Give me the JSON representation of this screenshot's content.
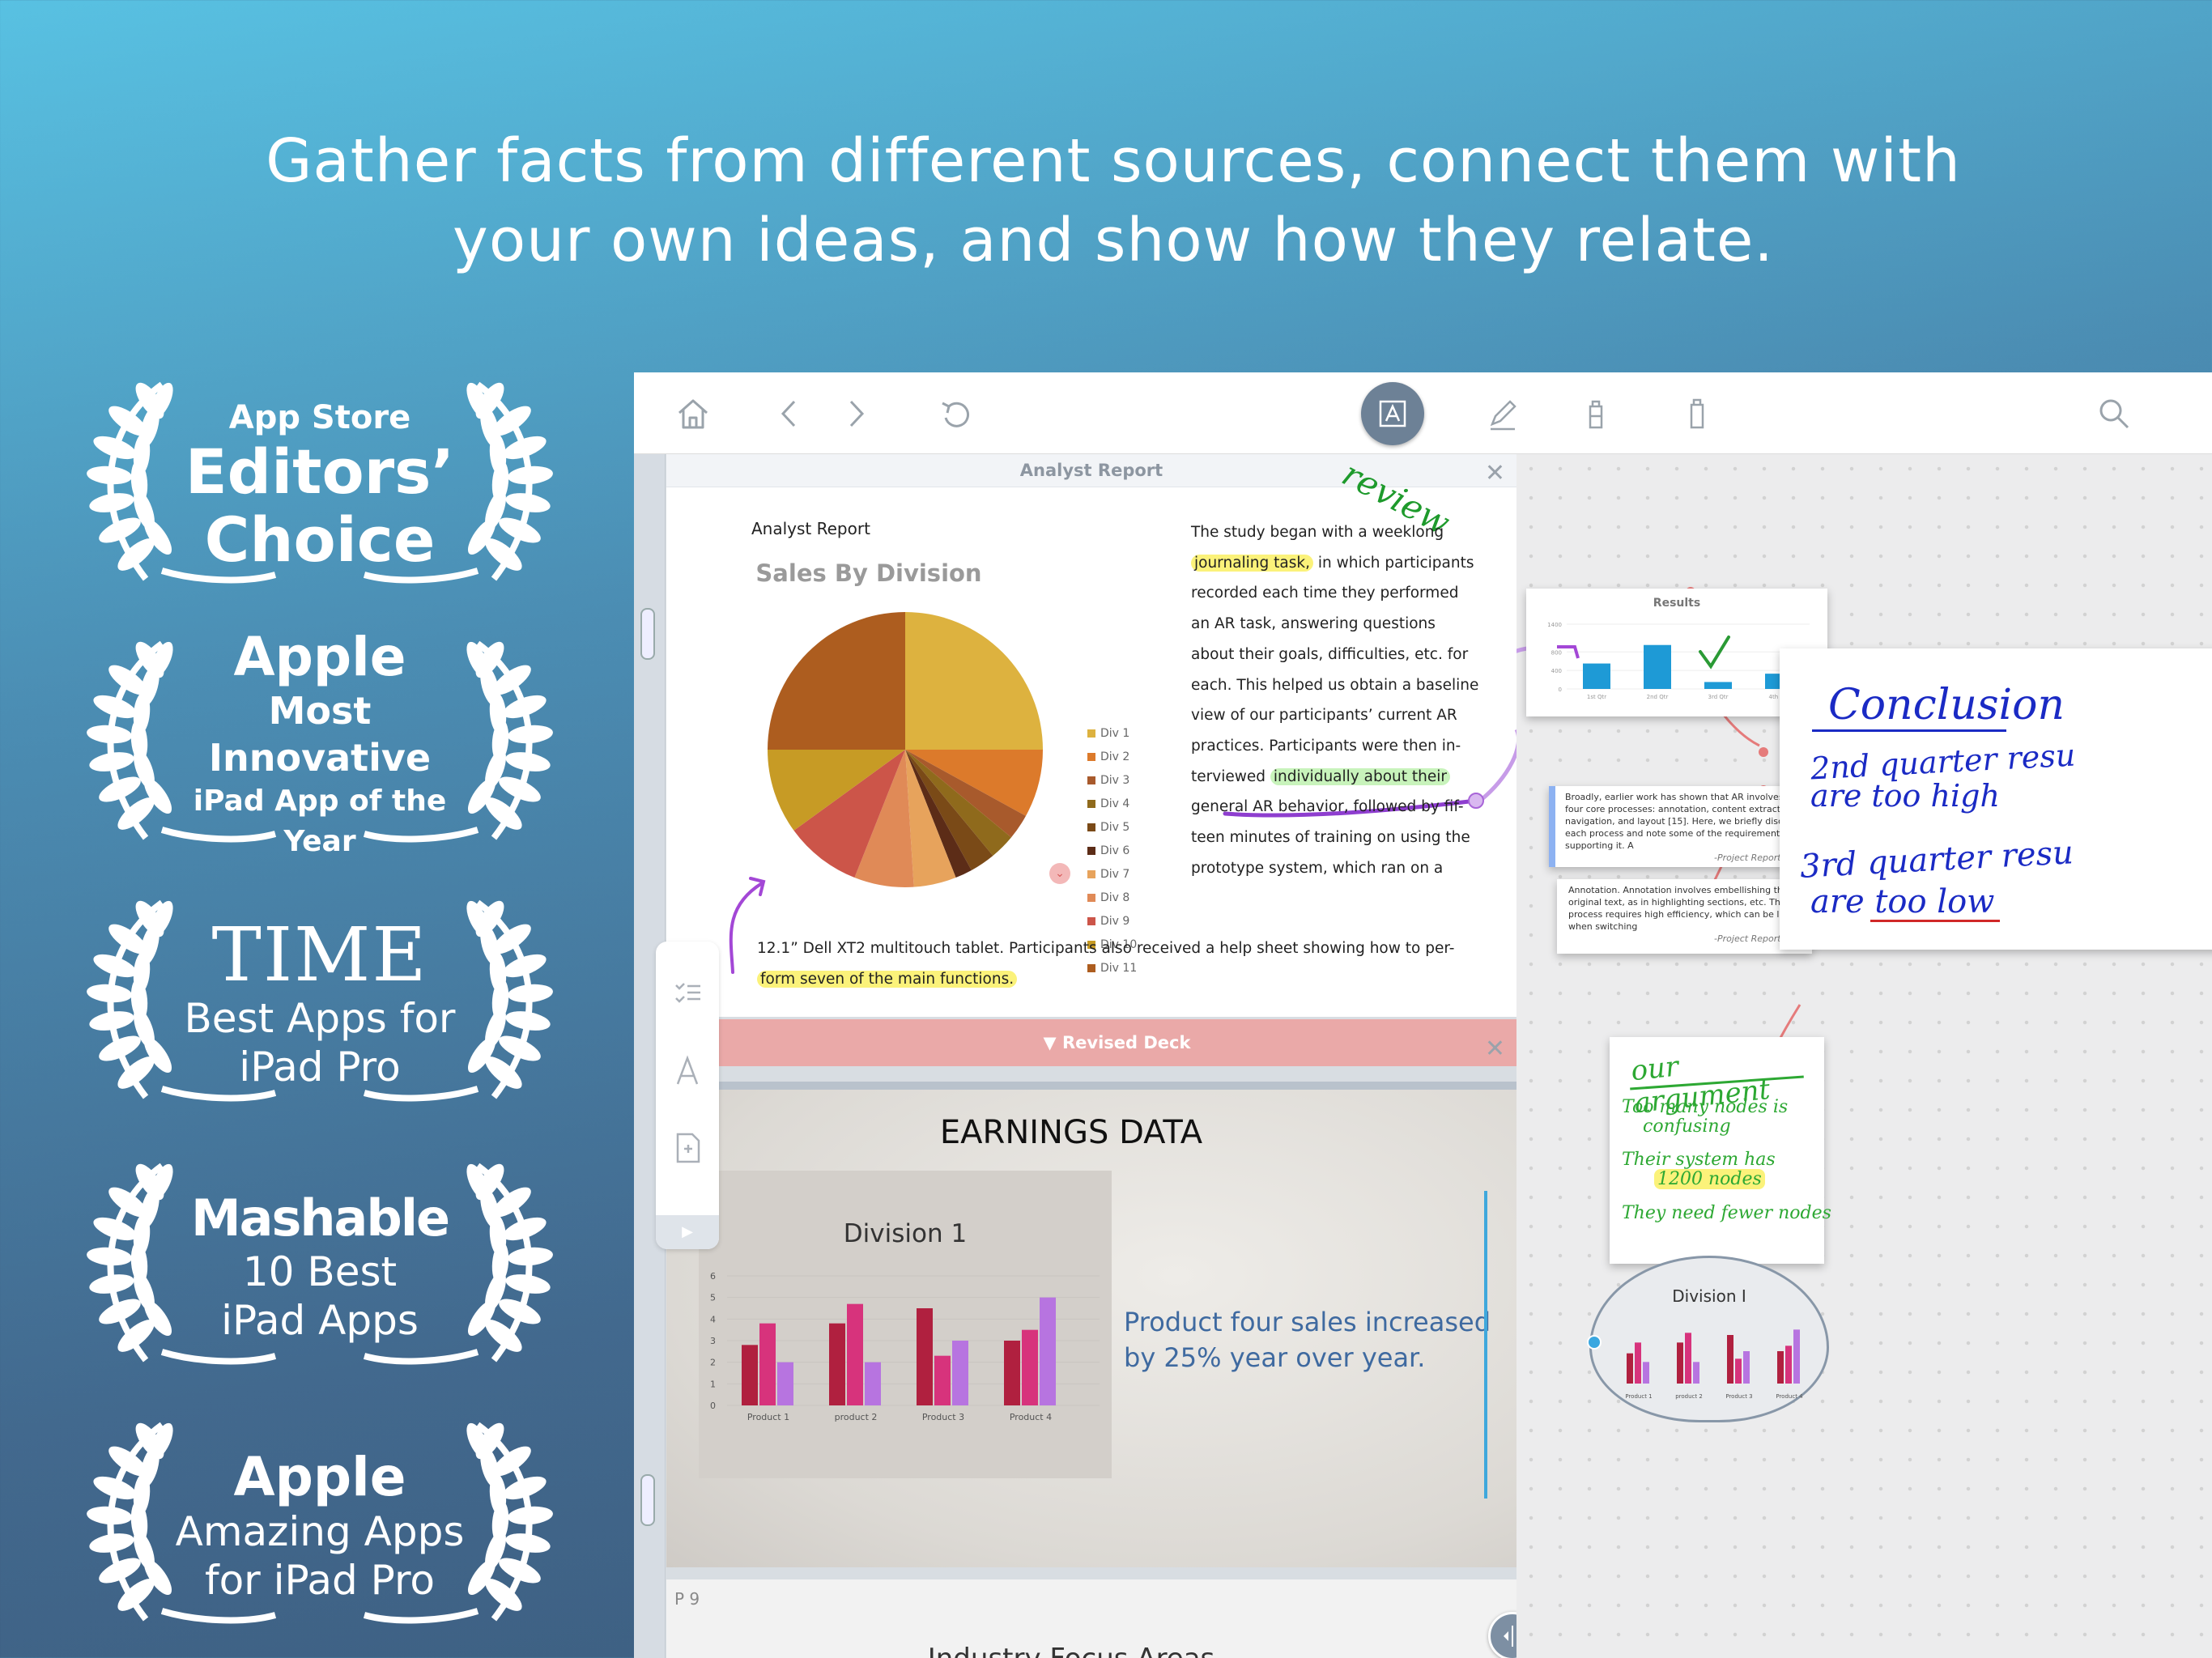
{
  "headline": {
    "line1": "Gather facts from different sources, connect them with",
    "line2": "your own ideas, and show how they relate."
  },
  "awards": [
    {
      "lines": [
        "App Store",
        "Editors’",
        "Choice"
      ]
    },
    {
      "lines": [
        "Apple",
        "Most Innovative",
        "iPad App of the Year"
      ]
    },
    {
      "lines": [
        "TIME",
        "Best Apps for",
        "iPad Pro"
      ]
    },
    {
      "lines": [
        "Mashable",
        "10 Best",
        "iPad Apps"
      ]
    },
    {
      "lines": [
        "Apple",
        "Amazing Apps",
        "for iPad Pro"
      ]
    }
  ],
  "toolbar": {
    "icons": [
      "home-icon",
      "back-icon",
      "forward-icon",
      "undo-icon",
      "text-tool-icon",
      "pen-icon",
      "highlighter-icon",
      "eraser-icon",
      "search-icon"
    ]
  },
  "doc1": {
    "tab_title": "Analyst Report",
    "heading": "Analyst Report",
    "annotation": "review",
    "body_lines": [
      "The study began with a weeklong",
      "journaling task,",
      " in which participants",
      "recorded each time they performed",
      "an AR task, answering questions",
      "about their goals, difficulties, etc. for",
      "each. This helped us obtain a baseline",
      "view of our participants’ current AR",
      "practices. Participants were then in-",
      "terviewed ",
      "individually about their",
      "general AR behavior, followed by fif-",
      "teen minutes of training on using the",
      "prototype system, which ran on a"
    ],
    "wide_line1": "12.1” Dell XT2 multitouch tablet. Participants also received a help sheet showing how to per-",
    "wide_line2": "form seven of the main functions."
  },
  "chart_data": [
    {
      "type": "pie",
      "title": "Sales By Division",
      "categories": [
        "Div 1",
        "Div 2",
        "Div 3",
        "Div 4",
        "Div 5",
        "Div 6",
        "Div 7",
        "Div 8",
        "Div 9",
        "Div 10",
        "Div 11"
      ],
      "values": [
        25,
        8,
        3,
        3,
        3,
        2,
        5,
        7,
        9,
        10,
        25
      ],
      "colors": [
        "#ddb23f",
        "#dc7a2b",
        "#a85a2c",
        "#8f6a1c",
        "#7a4a17",
        "#5c2c17",
        "#e7a35c",
        "#e08a57",
        "#cc5549",
        "#c79b25",
        "#ad5d1f"
      ]
    },
    {
      "type": "bar",
      "title": "Division 1",
      "categories": [
        "Product 1",
        "product 2",
        "Product 3",
        "Product 4"
      ],
      "series": [
        {
          "values": [
            2.8,
            3.8,
            4.5,
            3.0
          ]
        },
        {
          "values": [
            3.8,
            4.7,
            2.3,
            3.5
          ]
        },
        {
          "values": [
            2.0,
            2.0,
            3.0,
            5.0
          ]
        }
      ],
      "colors": [
        "#b0203f",
        "#d7337c",
        "#b774e0"
      ],
      "ylim": [
        0,
        6
      ],
      "yticks": [
        0,
        1,
        2,
        3,
        4,
        5,
        6
      ]
    },
    {
      "type": "bar",
      "title": "Results",
      "categories": [
        "1st Qtr",
        "2nd Qtr",
        "3rd Qtr",
        "4th Qtr"
      ],
      "values": [
        550,
        950,
        150,
        330
      ],
      "ylim": [
        0,
        1400
      ],
      "yticks": [
        0,
        400,
        800,
        1400
      ],
      "colors": [
        "#1e9ad6"
      ]
    }
  ],
  "doc2": {
    "tab_title": "▼ Revised Deck",
    "slide_title": "EARNINGS DATA",
    "slide_text": "Product four sales increased by 25% year over year."
  },
  "p9": {
    "page_label": "P 9",
    "next_title": "Industry Focus Areas"
  },
  "canvas": {
    "quote1": {
      "text": "Broadly, earlier work has shown that AR involves four core processes: annotation, content extraction, navigation, and layout [15]. Here, we briefly discuss each process and note some of the requirements for supporting it. A",
      "source": "-Project Report, p.5"
    },
    "quote2": {
      "text": "Annotation. Annotation involves embellishing the original text, as in highlighting sections, etc. This process requires high efficiency, which can be lost when switching",
      "source": "-Project Report, p.5"
    },
    "conclusion": {
      "title": "Conclusion",
      "line1": "2nd quarter resu",
      "line2": "are too high",
      "line3": "3rd quarter resu",
      "line4": "are too low"
    },
    "argument": {
      "title": "our argument",
      "b1a": "Too many nodes is",
      "b1b": "confusing",
      "b2a": "Their system has",
      "b2b": "1200 nodes",
      "b3": "They need fewer nodes"
    },
    "bubble_title": "Division I"
  }
}
